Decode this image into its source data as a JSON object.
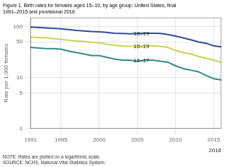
{
  "chart_data": {
    "type": "line",
    "title": "Figure 1. Birth rates for females aged 15–19, by age group: United States, final\n1991–2015 and provisional 2016",
    "note": "NOTE: Rates are plotted on a logarithmic scale.\nSOURCE: NCHS, National Vital Statistics System.",
    "ylabel": "Rate per 1,000 females",
    "x": [
      1991,
      1992,
      1993,
      1994,
      1995,
      1996,
      1997,
      1998,
      1999,
      2000,
      2001,
      2002,
      2003,
      2004,
      2005,
      2006,
      2007,
      2008,
      2009,
      2010,
      2011,
      2012,
      2013,
      2014,
      2015,
      2016
    ],
    "series": [
      {
        "name": "18–19",
        "color": "#2B4A9F",
        "values": [
          98,
          96,
          94,
          92,
          90,
          87,
          84,
          82,
          80,
          79,
          77,
          74,
          73,
          72,
          73,
          74,
          74,
          73,
          70,
          65,
          60,
          55,
          50,
          47,
          42,
          40
        ]
      },
      {
        "name": "15–19",
        "color": "#C8D44E",
        "values": [
          62,
          61,
          60,
          58,
          56,
          54,
          52,
          51,
          49,
          48,
          45,
          43,
          42,
          41,
          41,
          42,
          42,
          41,
          39,
          34,
          31,
          29,
          26,
          24,
          22,
          20
        ]
      },
      {
        "name": "15–17",
        "color": "#2E8B87",
        "values": [
          39,
          38,
          37,
          37,
          36,
          33,
          31,
          29,
          27,
          27,
          25,
          23,
          22,
          22,
          21,
          22,
          22,
          21,
          20,
          17,
          15,
          14,
          13,
          11,
          9.5,
          9
        ]
      }
    ],
    "xlim": [
      1991,
      2016
    ],
    "xticks": [
      1991,
      1995,
      2000,
      2005,
      2010,
      2015
    ],
    "ylim": [
      1,
      150
    ],
    "yticks": [
      1,
      5,
      10,
      50,
      100
    ],
    "log": "y",
    "grid": true,
    "annotations": [
      {
        "text": "18–19",
        "x": 2004.5,
        "y": 72
      },
      {
        "text": "15–19",
        "x": 2004.5,
        "y": 41
      },
      {
        "text": "15–17",
        "x": 2004.5,
        "y": 21.5
      },
      {
        "text": "2016",
        "x": 2016
      }
    ]
  }
}
